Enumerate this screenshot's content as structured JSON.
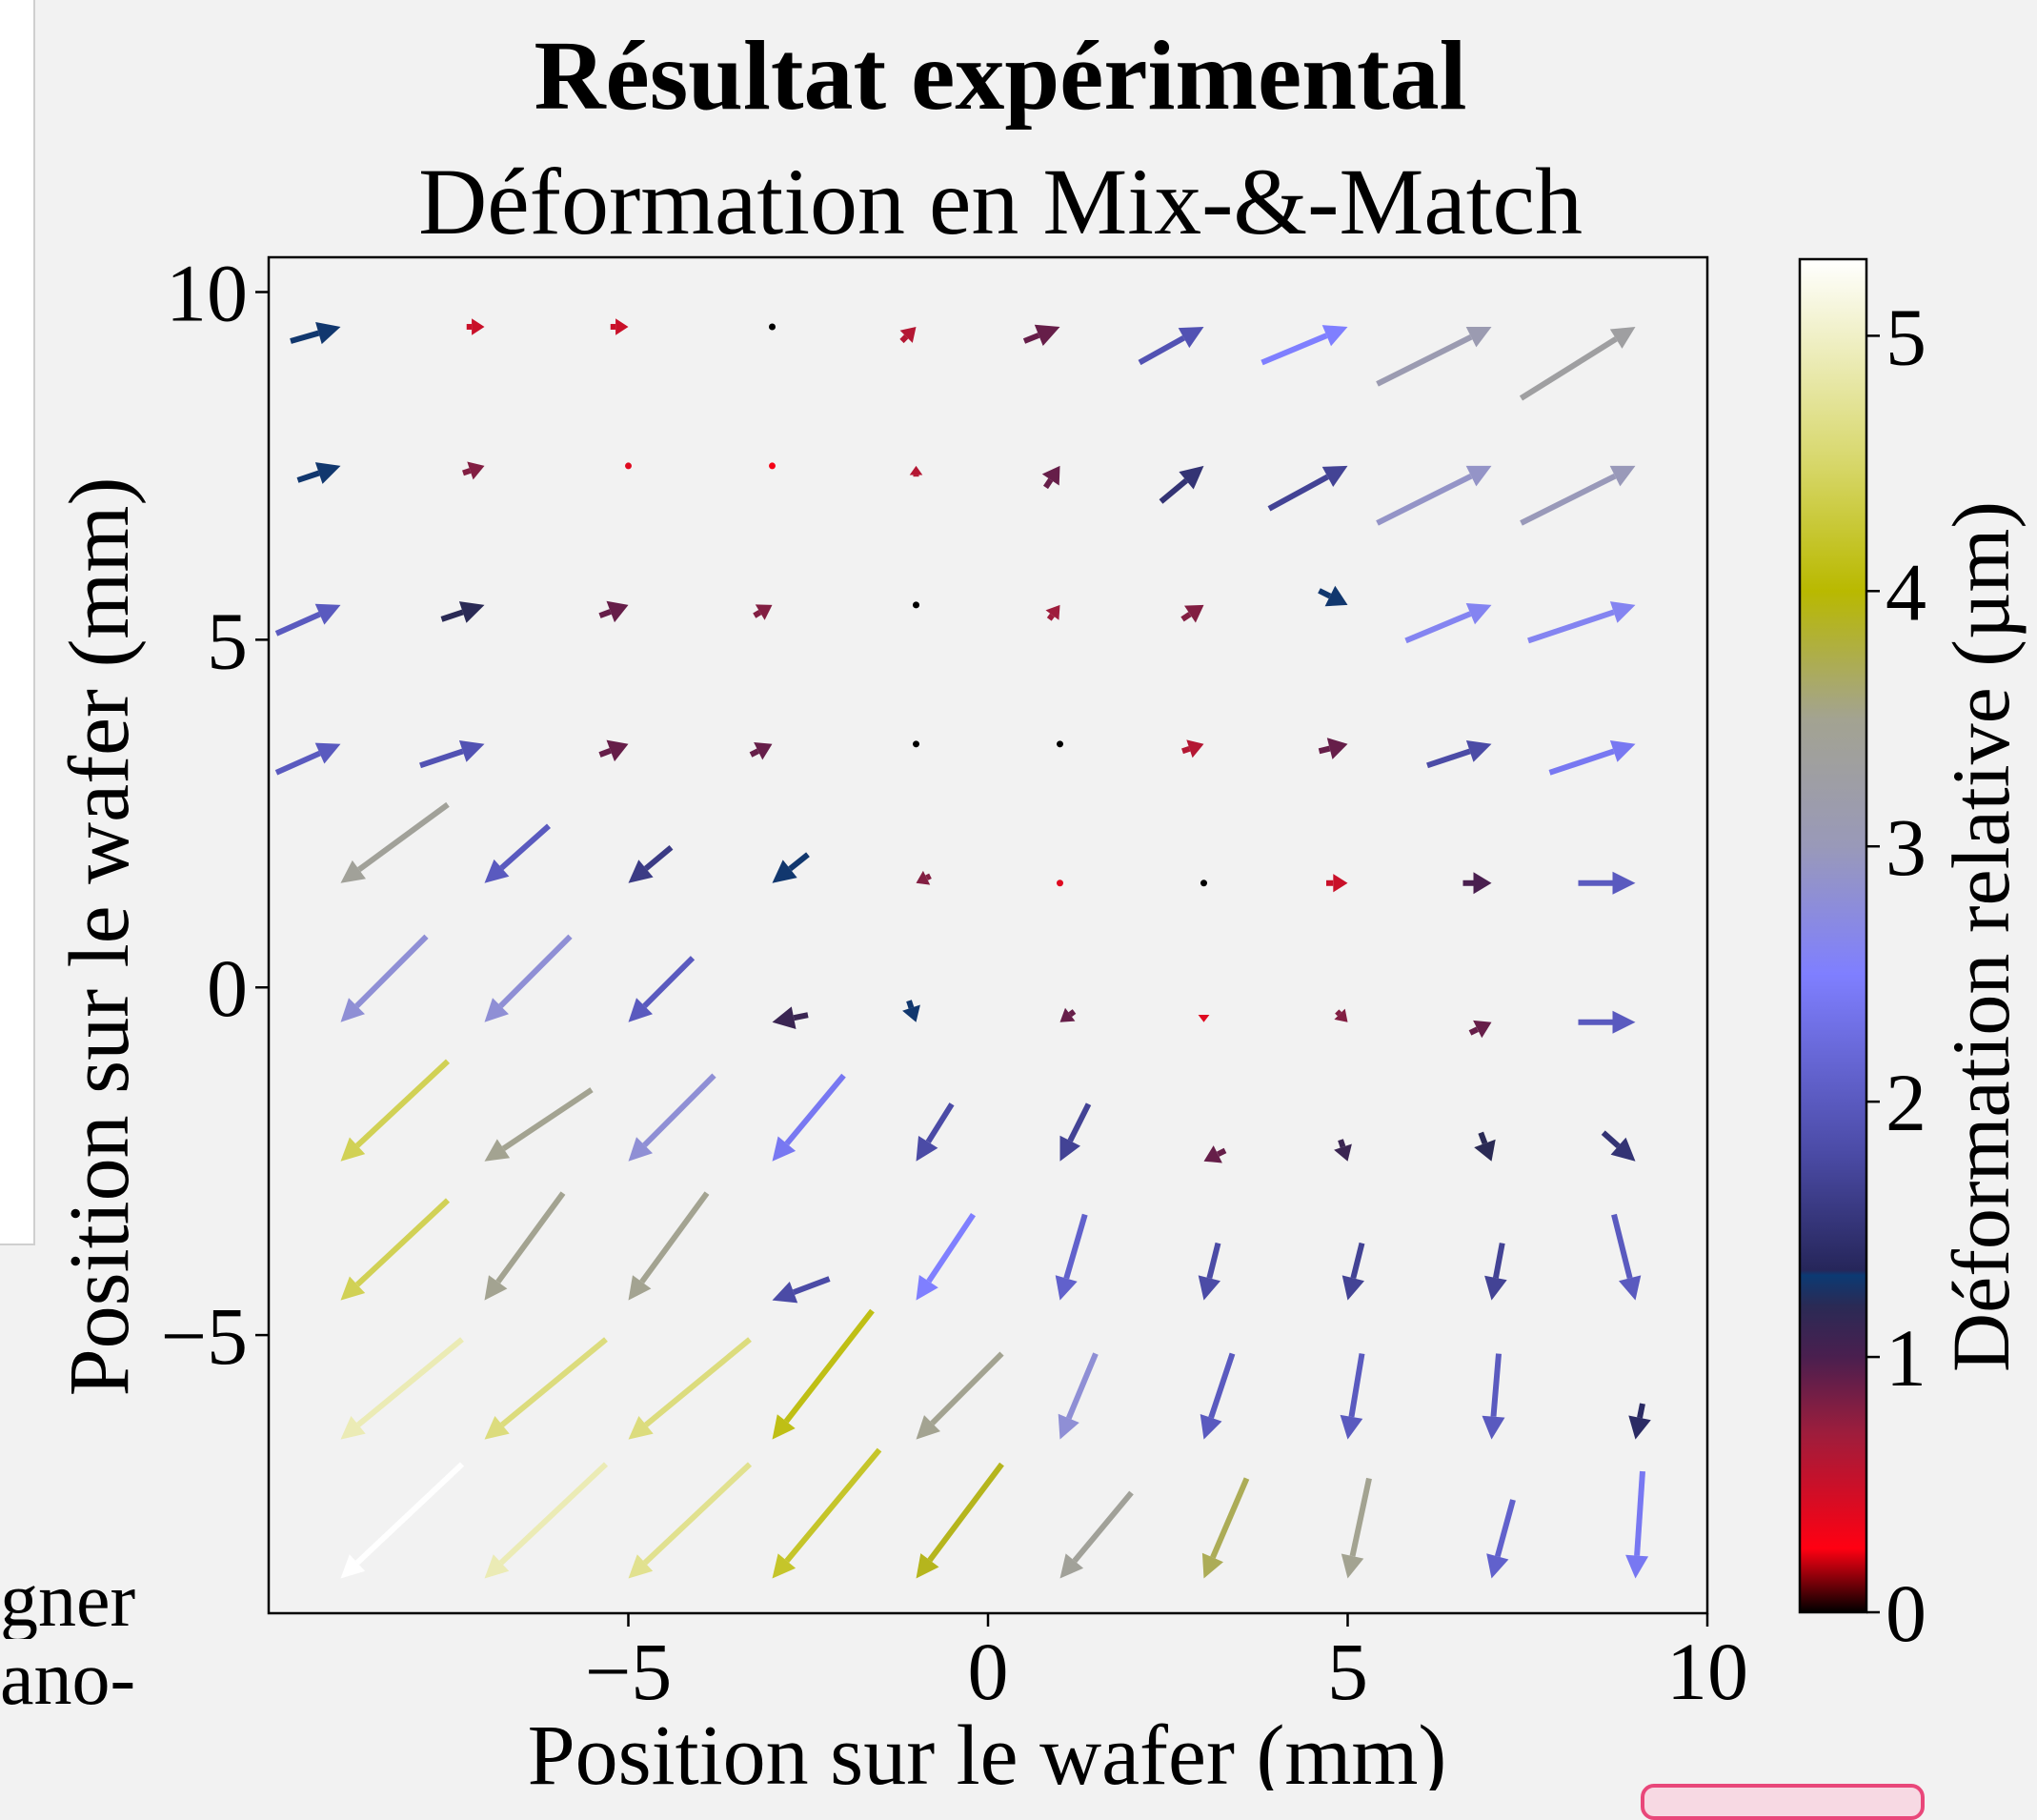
{
  "side_text": {
    "line1": "gner",
    "line2": "ano-"
  },
  "chart_data": {
    "type": "quiver",
    "title": "Résultat expérimental",
    "subtitle": "Déformation en Mix-&-Match",
    "xlabel": "Position sur le wafer (mm)",
    "ylabel": "Position sur le wafer (mm)",
    "xlim": [
      -10,
      10
    ],
    "ylim": [
      -9,
      10.5
    ],
    "xticks": [
      -5,
      0,
      5,
      10
    ],
    "yticks": [
      -5,
      0,
      5,
      10
    ],
    "xtick_labels": [
      "−5",
      "0",
      "5",
      "10"
    ],
    "ytick_labels": [
      "−5",
      "0",
      "5",
      "10"
    ],
    "grid": false,
    "colorbar": {
      "label": "Déformation relative (µm)",
      "range": [
        0,
        5.3
      ],
      "ticks": [
        0,
        1,
        2,
        3,
        4,
        5
      ],
      "tick_labels": [
        "0",
        "1",
        "2",
        "3",
        "4",
        "5"
      ],
      "colormap_stops": [
        {
          "v": 0.0,
          "color": "#000000"
        },
        {
          "v": 0.25,
          "color": "#ff0012"
        },
        {
          "v": 0.7,
          "color": "#9e1d3c"
        },
        {
          "v": 1.0,
          "color": "#4a1f4f"
        },
        {
          "v": 1.2,
          "color": "#2a2a55"
        },
        {
          "v": 1.32,
          "color": "#0c3a73"
        },
        {
          "v": 1.34,
          "color": "#26265a"
        },
        {
          "v": 1.8,
          "color": "#4b4ba6"
        },
        {
          "v": 2.5,
          "color": "#7f7fff"
        },
        {
          "v": 3.0,
          "color": "#9999b9"
        },
        {
          "v": 3.5,
          "color": "#a3a391"
        },
        {
          "v": 4.0,
          "color": "#b9b900"
        },
        {
          "v": 4.5,
          "color": "#d7d76a"
        },
        {
          "v": 5.3,
          "color": "#ffffff"
        }
      ]
    },
    "x": [
      -9,
      -7,
      -5,
      -3,
      -1,
      1,
      3,
      5,
      7,
      9
    ],
    "y": [
      9.5,
      7.5,
      5.5,
      3.5,
      1.5,
      -0.5,
      -2.5,
      -4.5,
      -6.5,
      -8.5
    ],
    "vectors": [
      [
        [
          0.7,
          0.2
        ],
        [
          0.25,
          0
        ],
        [
          0.25,
          0
        ],
        [
          0,
          0
        ],
        [
          0.2,
          0.2
        ],
        [
          0.5,
          0.2
        ],
        [
          0.9,
          0.5
        ],
        [
          1.2,
          0.5
        ],
        [
          1.6,
          0.8
        ],
        [
          1.6,
          1.0
        ]
      ],
      [
        [
          0.6,
          0.2
        ],
        [
          0.3,
          0.1
        ],
        [
          0,
          0
        ],
        [
          0,
          0
        ],
        [
          0,
          0.15
        ],
        [
          0.2,
          0.3
        ],
        [
          0.6,
          0.5
        ],
        [
          1.1,
          0.6
        ],
        [
          1.6,
          0.8
        ],
        [
          1.6,
          0.8
        ]
      ],
      [
        [
          0.9,
          0.4
        ],
        [
          0.6,
          0.2
        ],
        [
          0.4,
          0.15
        ],
        [
          0.25,
          0.15
        ],
        [
          0,
          0
        ],
        [
          0.15,
          0.2
        ],
        [
          0.3,
          0.2
        ],
        [
          0.4,
          -0.2
        ],
        [
          1.2,
          0.5
        ],
        [
          1.5,
          0.5
        ]
      ],
      [
        [
          0.9,
          0.4
        ],
        [
          0.9,
          0.3
        ],
        [
          0.4,
          0.15
        ],
        [
          0.3,
          0.15
        ],
        [
          0,
          0
        ],
        [
          0,
          0
        ],
        [
          0.3,
          0.1
        ],
        [
          0.4,
          0.1
        ],
        [
          0.9,
          0.3
        ],
        [
          1.2,
          0.4
        ]
      ],
      [
        [
          -1.5,
          -1.1
        ],
        [
          -0.9,
          -0.8
        ],
        [
          -0.6,
          -0.5
        ],
        [
          -0.5,
          -0.4
        ],
        [
          -0.2,
          -0.1
        ],
        [
          0,
          0
        ],
        [
          0,
          0
        ],
        [
          0.3,
          0
        ],
        [
          0.4,
          0
        ],
        [
          0.8,
          0
        ]
      ],
      [
        [
          -1.2,
          -1.2
        ],
        [
          -1.2,
          -1.2
        ],
        [
          -0.9,
          -0.9
        ],
        [
          -0.5,
          -0.1
        ],
        [
          0.1,
          -0.3
        ],
        [
          -0.2,
          -0.15
        ],
        [
          0,
          -0.1
        ],
        [
          0.15,
          -0.15
        ],
        [
          0.3,
          0.15
        ],
        [
          0.8,
          0
        ]
      ],
      [
        [
          -1.5,
          -1.4
        ],
        [
          -1.5,
          -1.0
        ],
        [
          -1.2,
          -1.2
        ],
        [
          -1.0,
          -1.2
        ],
        [
          -0.5,
          -0.8
        ],
        [
          -0.4,
          -0.8
        ],
        [
          -0.3,
          -0.15
        ],
        [
          0.1,
          -0.3
        ],
        [
          0.15,
          -0.4
        ],
        [
          0.45,
          -0.4
        ]
      ],
      [
        [
          -1.5,
          -1.4
        ],
        [
          -1.1,
          -1.5
        ],
        [
          -1.1,
          -1.5
        ],
        [
          -0.8,
          -0.3
        ],
        [
          -0.8,
          -1.2
        ],
        [
          -0.35,
          -1.2
        ],
        [
          -0.2,
          -0.8
        ],
        [
          -0.2,
          -0.8
        ],
        [
          -0.15,
          -0.8
        ],
        [
          0.3,
          -1.2
        ]
      ],
      [
        [
          -1.7,
          -1.4
        ],
        [
          -1.7,
          -1.4
        ],
        [
          -1.7,
          -1.4
        ],
        [
          -1.4,
          -1.8
        ],
        [
          -1.2,
          -1.2
        ],
        [
          -0.5,
          -1.2
        ],
        [
          -0.4,
          -1.2
        ],
        [
          -0.2,
          -1.2
        ],
        [
          -0.1,
          -1.2
        ],
        [
          -0.1,
          -0.5
        ]
      ],
      [
        [
          -1.7,
          -1.6
        ],
        [
          -1.7,
          -1.6
        ],
        [
          -1.7,
          -1.6
        ],
        [
          -1.5,
          -1.8
        ],
        [
          -1.2,
          -1.6
        ],
        [
          -1.0,
          -1.2
        ],
        [
          -0.6,
          -1.4
        ],
        [
          -0.3,
          -1.4
        ],
        [
          -0.3,
          -1.1
        ],
        [
          -0.1,
          -1.5
        ]
      ]
    ],
    "magnitudes": [
      [
        1.3,
        0.5,
        0.5,
        0.0,
        0.6,
        0.9,
        1.9,
        2.5,
        3.1,
        3.3
      ],
      [
        1.3,
        0.8,
        0.4,
        0.3,
        0.6,
        0.9,
        1.5,
        1.7,
        2.9,
        3.0
      ],
      [
        2.0,
        1.2,
        0.9,
        0.8,
        0.0,
        0.7,
        0.8,
        1.3,
        2.6,
        2.6
      ],
      [
        2.0,
        1.9,
        0.9,
        0.9,
        0.0,
        0.0,
        0.6,
        0.9,
        1.8,
        2.4
      ],
      [
        3.4,
        2.0,
        1.6,
        1.3,
        0.8,
        0.4,
        0.0,
        0.5,
        1.0,
        2.0
      ],
      [
        2.8,
        2.8,
        2.0,
        1.1,
        1.3,
        0.9,
        0.4,
        0.8,
        0.9,
        2.0
      ],
      [
        4.4,
        3.5,
        2.8,
        2.4,
        1.8,
        1.7,
        0.9,
        1.1,
        1.2,
        1.5
      ],
      [
        4.4,
        3.5,
        3.5,
        1.8,
        2.5,
        2.1,
        1.8,
        1.7,
        1.7,
        2.0
      ],
      [
        4.9,
        4.6,
        4.6,
        4.1,
        3.5,
        2.8,
        2.0,
        2.0,
        2.0,
        1.4
      ],
      [
        5.3,
        4.9,
        4.7,
        4.2,
        3.9,
        3.4,
        3.7,
        3.5,
        2.1,
        2.4
      ]
    ]
  }
}
